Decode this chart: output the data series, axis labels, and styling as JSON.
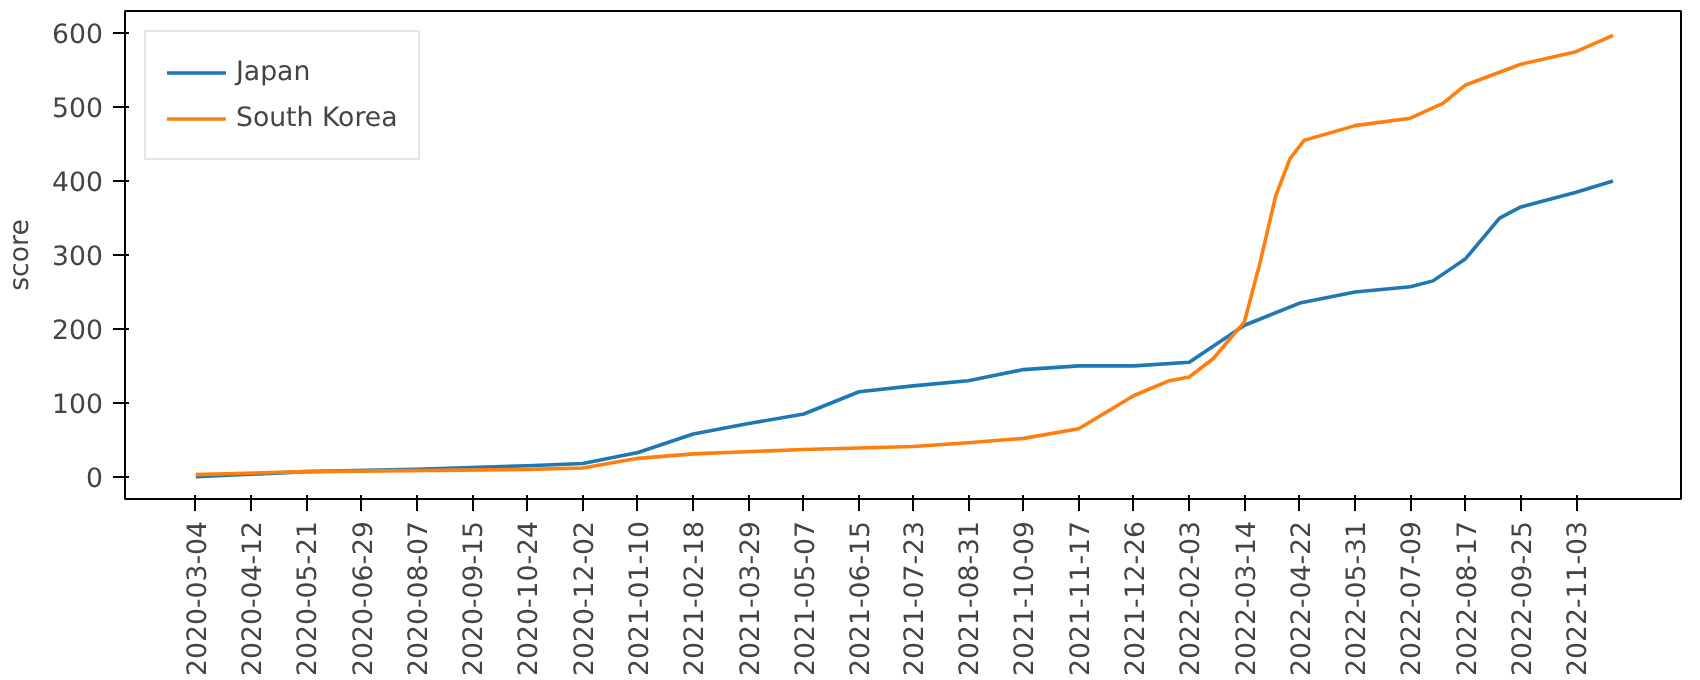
{
  "chart_data": {
    "type": "line",
    "ylabel": "score",
    "legend": "top left",
    "grid": false,
    "marker": "none",
    "line_style": "solid",
    "xlim": [
      "2020-01-14",
      "2023-01-16"
    ],
    "ylim": [
      -30,
      630
    ],
    "xticks": [
      "2020-03-04",
      "2020-04-12",
      "2020-05-21",
      "2020-06-29",
      "2020-08-07",
      "2020-09-15",
      "2020-10-24",
      "2020-12-02",
      "2021-01-10",
      "2021-02-18",
      "2021-03-29",
      "2021-05-07",
      "2021-06-15",
      "2021-07-23",
      "2021-08-31",
      "2021-10-09",
      "2021-11-17",
      "2021-12-26",
      "2022-02-03",
      "2022-03-14",
      "2022-04-22",
      "2022-05-31",
      "2022-07-09",
      "2022-08-17",
      "2022-09-25",
      "2022-11-03"
    ],
    "yticks": [
      0,
      100,
      200,
      300,
      400,
      500,
      600
    ],
    "series": [
      {
        "name": "Japan",
        "color": "#1f77b4",
        "x": [
          "2020-03-04",
          "2020-05-21",
          "2020-08-07",
          "2020-10-24",
          "2020-12-02",
          "2021-01-10",
          "2021-02-18",
          "2021-03-29",
          "2021-05-07",
          "2021-06-15",
          "2021-07-23",
          "2021-08-31",
          "2021-10-09",
          "2021-11-17",
          "2021-12-26",
          "2022-02-03",
          "2022-03-14",
          "2022-04-22",
          "2022-05-31",
          "2022-07-09",
          "2022-07-25",
          "2022-08-17",
          "2022-09-10",
          "2022-09-25",
          "2022-11-03",
          "2022-11-29"
        ],
        "values": [
          0,
          7,
          10,
          15,
          18,
          33,
          58,
          72,
          85,
          115,
          123,
          130,
          145,
          150,
          150,
          155,
          205,
          235,
          250,
          257,
          265,
          295,
          350,
          365,
          385,
          400
        ]
      },
      {
        "name": "South Korea",
        "color": "#ff7f0e",
        "x": [
          "2020-03-04",
          "2020-05-21",
          "2020-10-24",
          "2020-12-02",
          "2021-01-10",
          "2021-02-18",
          "2021-05-07",
          "2021-07-23",
          "2021-08-31",
          "2021-10-09",
          "2021-11-17",
          "2021-12-26",
          "2022-01-20",
          "2022-02-03",
          "2022-02-20",
          "2022-03-14",
          "2022-03-25",
          "2022-04-05",
          "2022-04-15",
          "2022-04-25",
          "2022-05-31",
          "2022-07-09",
          "2022-08-01",
          "2022-08-17",
          "2022-09-25",
          "2022-11-03",
          "2022-11-29"
        ],
        "values": [
          3,
          7,
          10,
          12,
          25,
          31,
          37,
          41,
          46,
          52,
          65,
          110,
          130,
          135,
          160,
          210,
          290,
          380,
          430,
          455,
          475,
          485,
          505,
          530,
          558,
          575,
          597
        ]
      }
    ]
  }
}
